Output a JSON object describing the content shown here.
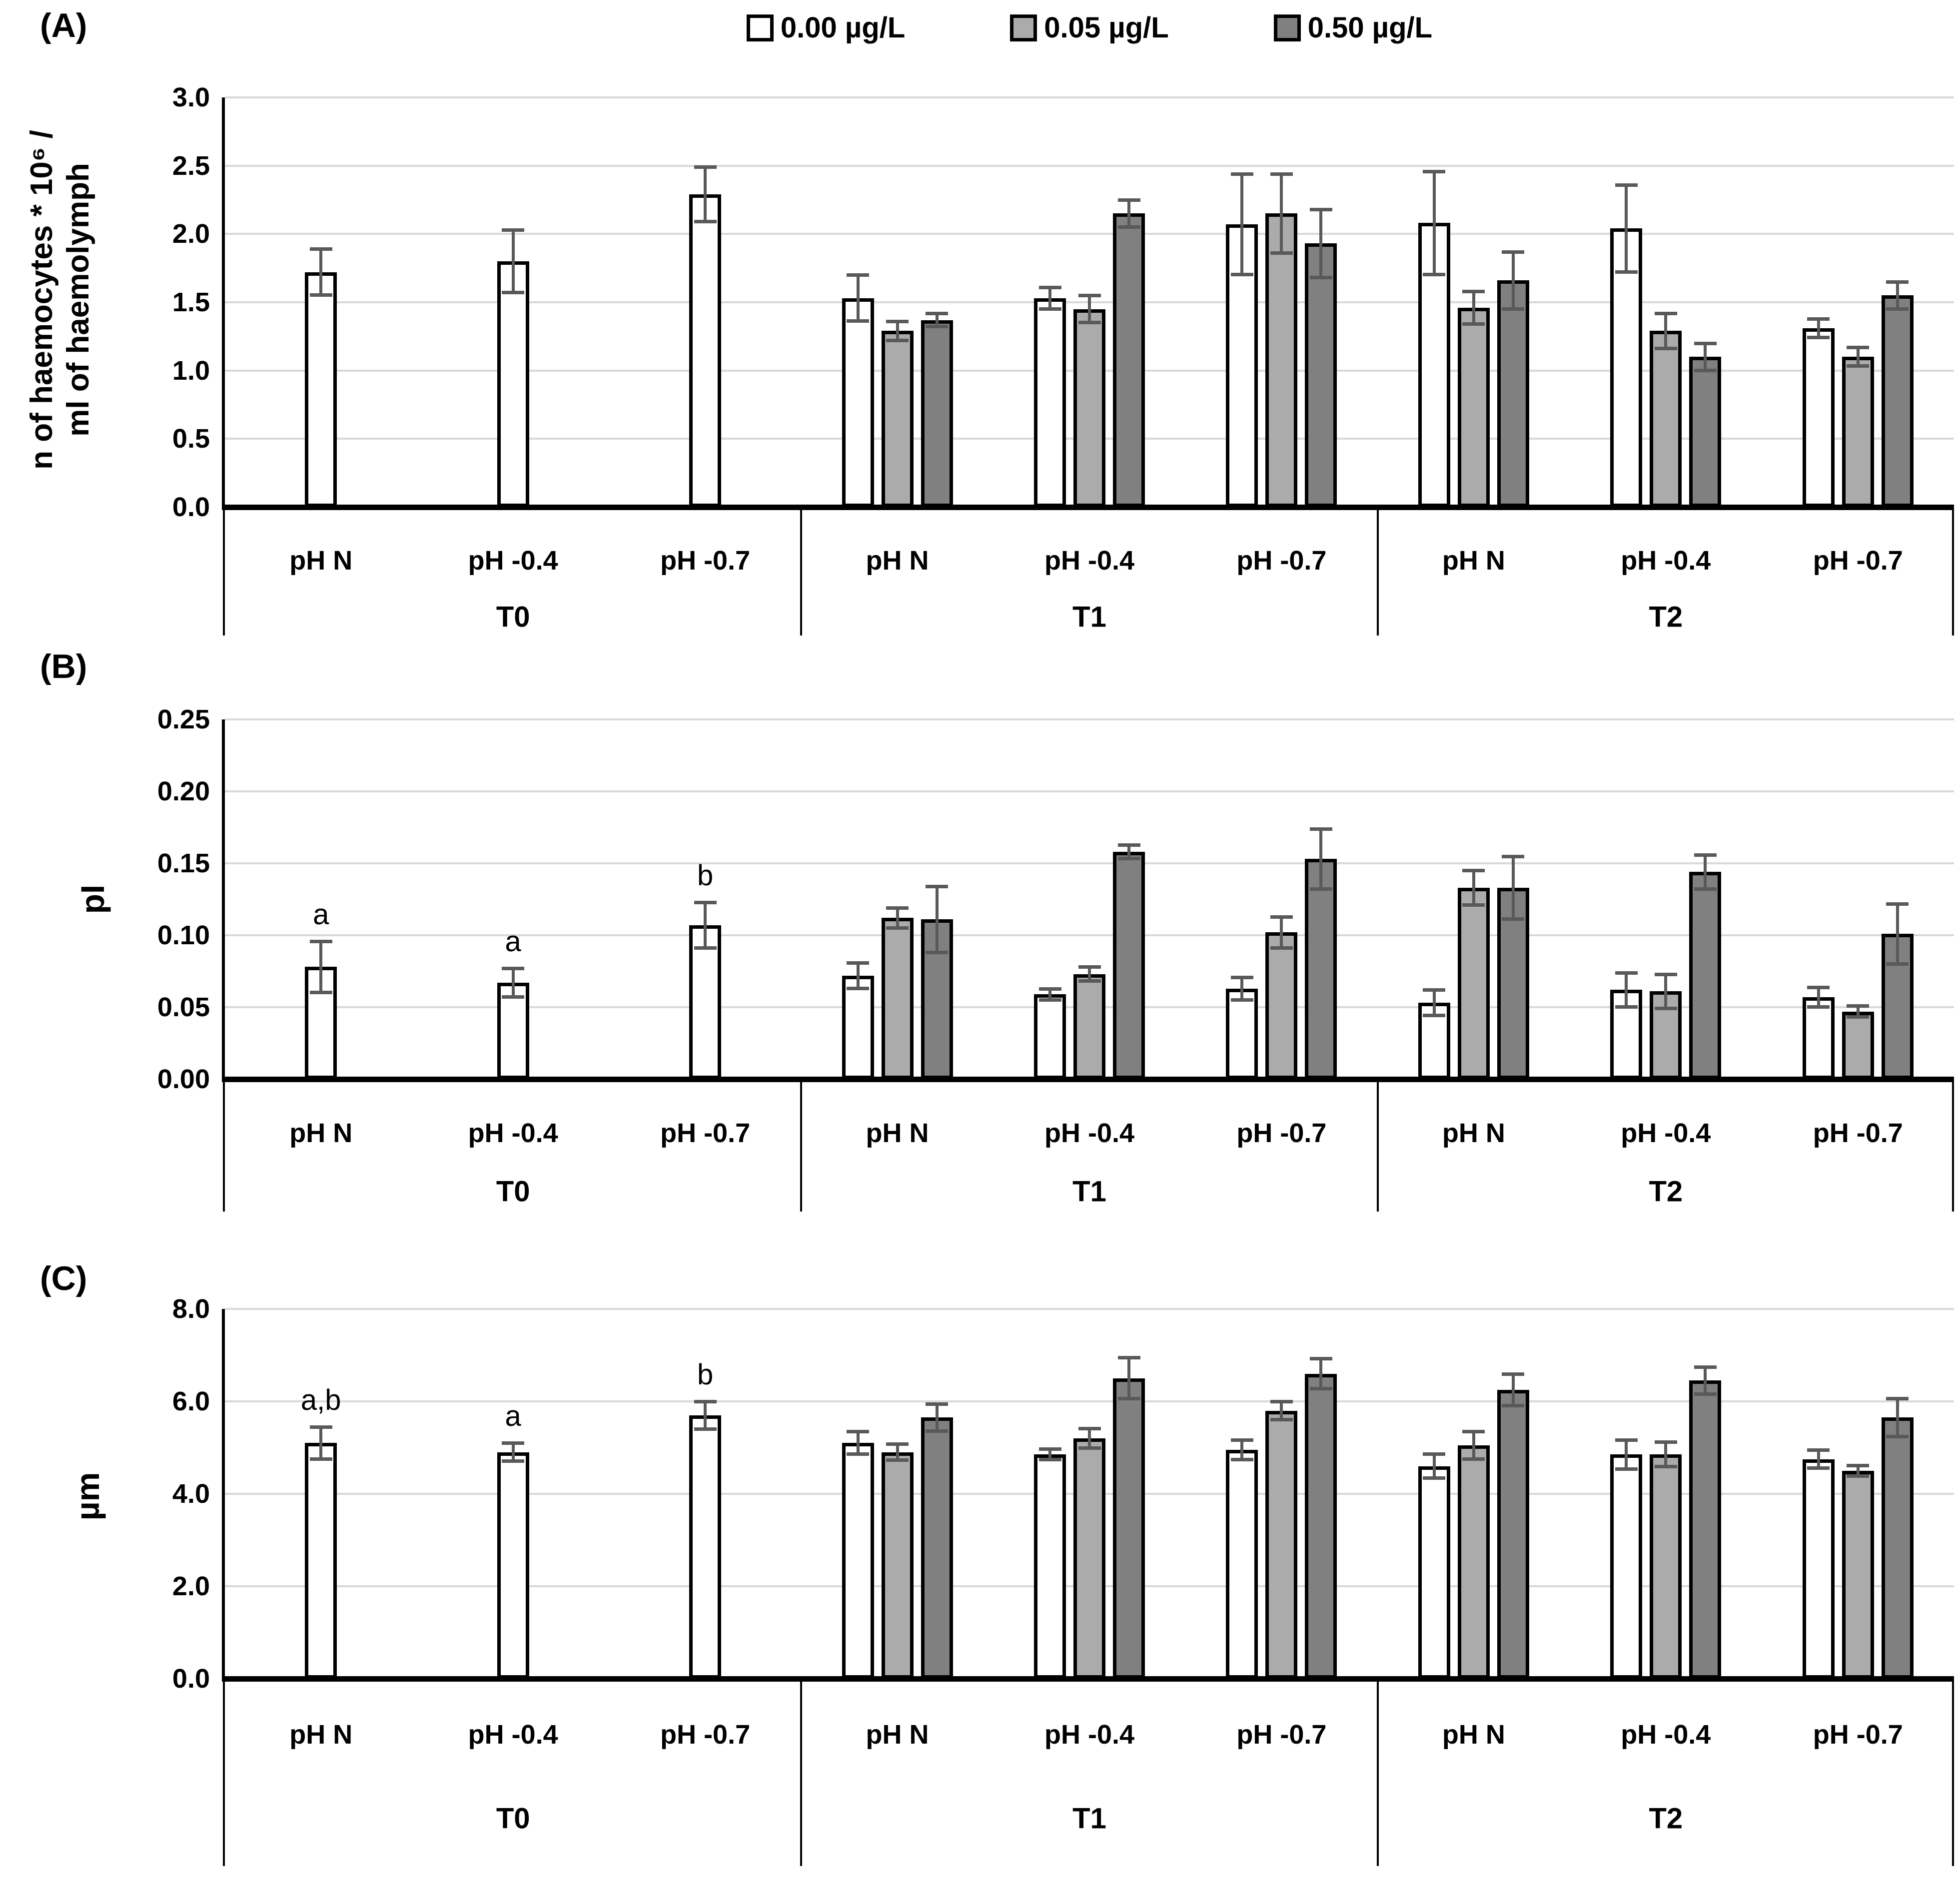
{
  "figure": {
    "background": "#ffffff",
    "panel_labels": [
      "(A)",
      "(B)",
      "(C)"
    ]
  },
  "colors": {
    "bar_white": "#ffffff",
    "bar_light_gray": "#ababab",
    "bar_dark_gray": "#808080",
    "bar_border": "#000000",
    "error_bar": "#595959",
    "gridline": "#d9d9d9",
    "axis": "#000000"
  },
  "legend": {
    "items": [
      {
        "label": "0.00 µg/L",
        "color": "#ffffff"
      },
      {
        "label": "0.05 µg/L",
        "color": "#ababab"
      },
      {
        "label": "0.50 µg/L",
        "color": "#808080"
      }
    ]
  },
  "chart_data": [
    {
      "panel_label": "(A)",
      "type": "bar",
      "title": "",
      "ylabel_lines": [
        "n of haemocytes * 10⁶ /",
        "ml of haemolymph"
      ],
      "ymax": 3.0,
      "ylim": [
        0.0,
        3.0
      ],
      "grid": true,
      "y_ticks": [
        "3.0",
        "2.5",
        "2.0",
        "1.5",
        "1.0",
        "0.5",
        "0.0"
      ],
      "time_groups": [
        "T0",
        "T1",
        "T2"
      ],
      "ph_categories": [
        "pH N",
        "pH -0.4",
        "pH -0.7"
      ],
      "t0_letters": null,
      "groups": [
        {
          "time": "T0",
          "series": [
            {
              "name": "0.00 µg/L",
              "values": [
                1.72,
                1.8,
                2.29
              ],
              "errors": [
                0.17,
                0.23,
                0.2
              ]
            },
            {
              "name": "0.05 µg/L",
              "values": [
                null,
                null,
                null
              ],
              "errors": [
                null,
                null,
                null
              ]
            },
            {
              "name": "0.50 µg/L",
              "values": [
                null,
                null,
                null
              ],
              "errors": [
                null,
                null,
                null
              ]
            }
          ]
        },
        {
          "time": "T1",
          "series": [
            {
              "name": "0.00 µg/L",
              "values": [
                1.53,
                1.53,
                2.07
              ],
              "errors": [
                0.17,
                0.08,
                0.37
              ]
            },
            {
              "name": "0.05 µg/L",
              "values": [
                1.29,
                1.45,
                2.15
              ],
              "errors": [
                0.07,
                0.1,
                0.29
              ]
            },
            {
              "name": "0.50 µg/L",
              "values": [
                1.37,
                2.15,
                1.93
              ],
              "errors": [
                0.05,
                0.1,
                0.25
              ]
            }
          ]
        },
        {
          "time": "T2",
          "series": [
            {
              "name": "0.00 µg/L",
              "values": [
                2.08,
                2.04,
                1.31
              ],
              "errors": [
                0.38,
                0.32,
                0.07
              ]
            },
            {
              "name": "0.05 µg/L",
              "values": [
                1.46,
                1.29,
                1.1
              ],
              "errors": [
                0.12,
                0.13,
                0.07
              ]
            },
            {
              "name": "0.50 µg/L",
              "values": [
                1.66,
                1.1,
                1.55
              ],
              "errors": [
                0.21,
                0.1,
                0.1
              ]
            }
          ]
        }
      ]
    },
    {
      "panel_label": "(B)",
      "type": "bar",
      "title": "",
      "ylabel_lines": [
        "pI"
      ],
      "ymax": 0.25,
      "ylim": [
        0.0,
        0.25
      ],
      "grid": true,
      "y_ticks": [
        "0.25",
        "0.20",
        "0.15",
        "0.10",
        "0.05",
        "0.00"
      ],
      "time_groups": [
        "T0",
        "T1",
        "T2"
      ],
      "ph_categories": [
        "pH N",
        "pH -0.4",
        "pH -0.7"
      ],
      "t0_letters": [
        "a",
        "a",
        "b"
      ],
      "groups": [
        {
          "time": "T0",
          "series": [
            {
              "name": "0.00 µg/L",
              "values": [
                0.078,
                0.067,
                0.107
              ],
              "errors": [
                0.018,
                0.01,
                0.016
              ]
            },
            {
              "name": "0.05 µg/L",
              "values": [
                null,
                null,
                null
              ],
              "errors": [
                null,
                null,
                null
              ]
            },
            {
              "name": "0.50 µg/L",
              "values": [
                null,
                null,
                null
              ],
              "errors": [
                null,
                null,
                null
              ]
            }
          ]
        },
        {
          "time": "T1",
          "series": [
            {
              "name": "0.00 µg/L",
              "values": [
                0.072,
                0.059,
                0.063
              ],
              "errors": [
                0.009,
                0.004,
                0.008
              ]
            },
            {
              "name": "0.05 µg/L",
              "values": [
                0.112,
                0.073,
                0.102
              ],
              "errors": [
                0.007,
                0.005,
                0.011
              ]
            },
            {
              "name": "0.50 µg/L",
              "values": [
                0.111,
                0.158,
                0.153
              ],
              "errors": [
                0.023,
                0.005,
                0.021
              ]
            }
          ]
        },
        {
          "time": "T2",
          "series": [
            {
              "name": "0.00 µg/L",
              "values": [
                0.053,
                0.062,
                0.057
              ],
              "errors": [
                0.009,
                0.012,
                0.007
              ]
            },
            {
              "name": "0.05 µg/L",
              "values": [
                0.133,
                0.061,
                0.047
              ],
              "errors": [
                0.012,
                0.012,
                0.004
              ]
            },
            {
              "name": "0.50 µg/L",
              "values": [
                0.133,
                0.144,
                0.101
              ],
              "errors": [
                0.022,
                0.012,
                0.021
              ]
            }
          ]
        }
      ]
    },
    {
      "panel_label": "(C)",
      "type": "bar",
      "title": "",
      "ylabel_lines": [
        "µm"
      ],
      "ymax": 8.0,
      "ylim": [
        0.0,
        8.0
      ],
      "grid": true,
      "y_ticks": [
        "8.0",
        "6.0",
        "4.0",
        "2.0",
        "0.0"
      ],
      "time_groups": [
        "T0",
        "T1",
        "T2"
      ],
      "ph_categories": [
        "pH N",
        "pH -0.4",
        "pH -0.7"
      ],
      "t0_letters": [
        "a,b",
        "a",
        "b"
      ],
      "groups": [
        {
          "time": "T0",
          "series": [
            {
              "name": "0.00 µg/L",
              "values": [
                5.1,
                4.9,
                5.7
              ],
              "errors": [
                0.35,
                0.2,
                0.3
              ]
            },
            {
              "name": "0.05 µg/L",
              "values": [
                null,
                null,
                null
              ],
              "errors": [
                null,
                null,
                null
              ]
            },
            {
              "name": "0.50 µg/L",
              "values": [
                null,
                null,
                null
              ],
              "errors": [
                null,
                null,
                null
              ]
            }
          ]
        },
        {
          "time": "T1",
          "series": [
            {
              "name": "0.00 µg/L",
              "values": [
                5.1,
                4.85,
                4.95
              ],
              "errors": [
                0.25,
                0.12,
                0.22
              ]
            },
            {
              "name": "0.05 µg/L",
              "values": [
                4.9,
                5.2,
                5.8
              ],
              "errors": [
                0.18,
                0.22,
                0.2
              ]
            },
            {
              "name": "0.50 µg/L",
              "values": [
                5.65,
                6.5,
                6.6
              ],
              "errors": [
                0.3,
                0.45,
                0.33
              ]
            }
          ]
        },
        {
          "time": "T2",
          "series": [
            {
              "name": "0.00 µg/L",
              "values": [
                4.6,
                4.85,
                4.75
              ],
              "errors": [
                0.27,
                0.32,
                0.2
              ]
            },
            {
              "name": "0.05 µg/L",
              "values": [
                5.05,
                4.85,
                4.5
              ],
              "errors": [
                0.3,
                0.27,
                0.12
              ]
            },
            {
              "name": "0.50 µg/L",
              "values": [
                6.25,
                6.45,
                5.65
              ],
              "errors": [
                0.35,
                0.3,
                0.42
              ]
            }
          ]
        }
      ]
    }
  ]
}
